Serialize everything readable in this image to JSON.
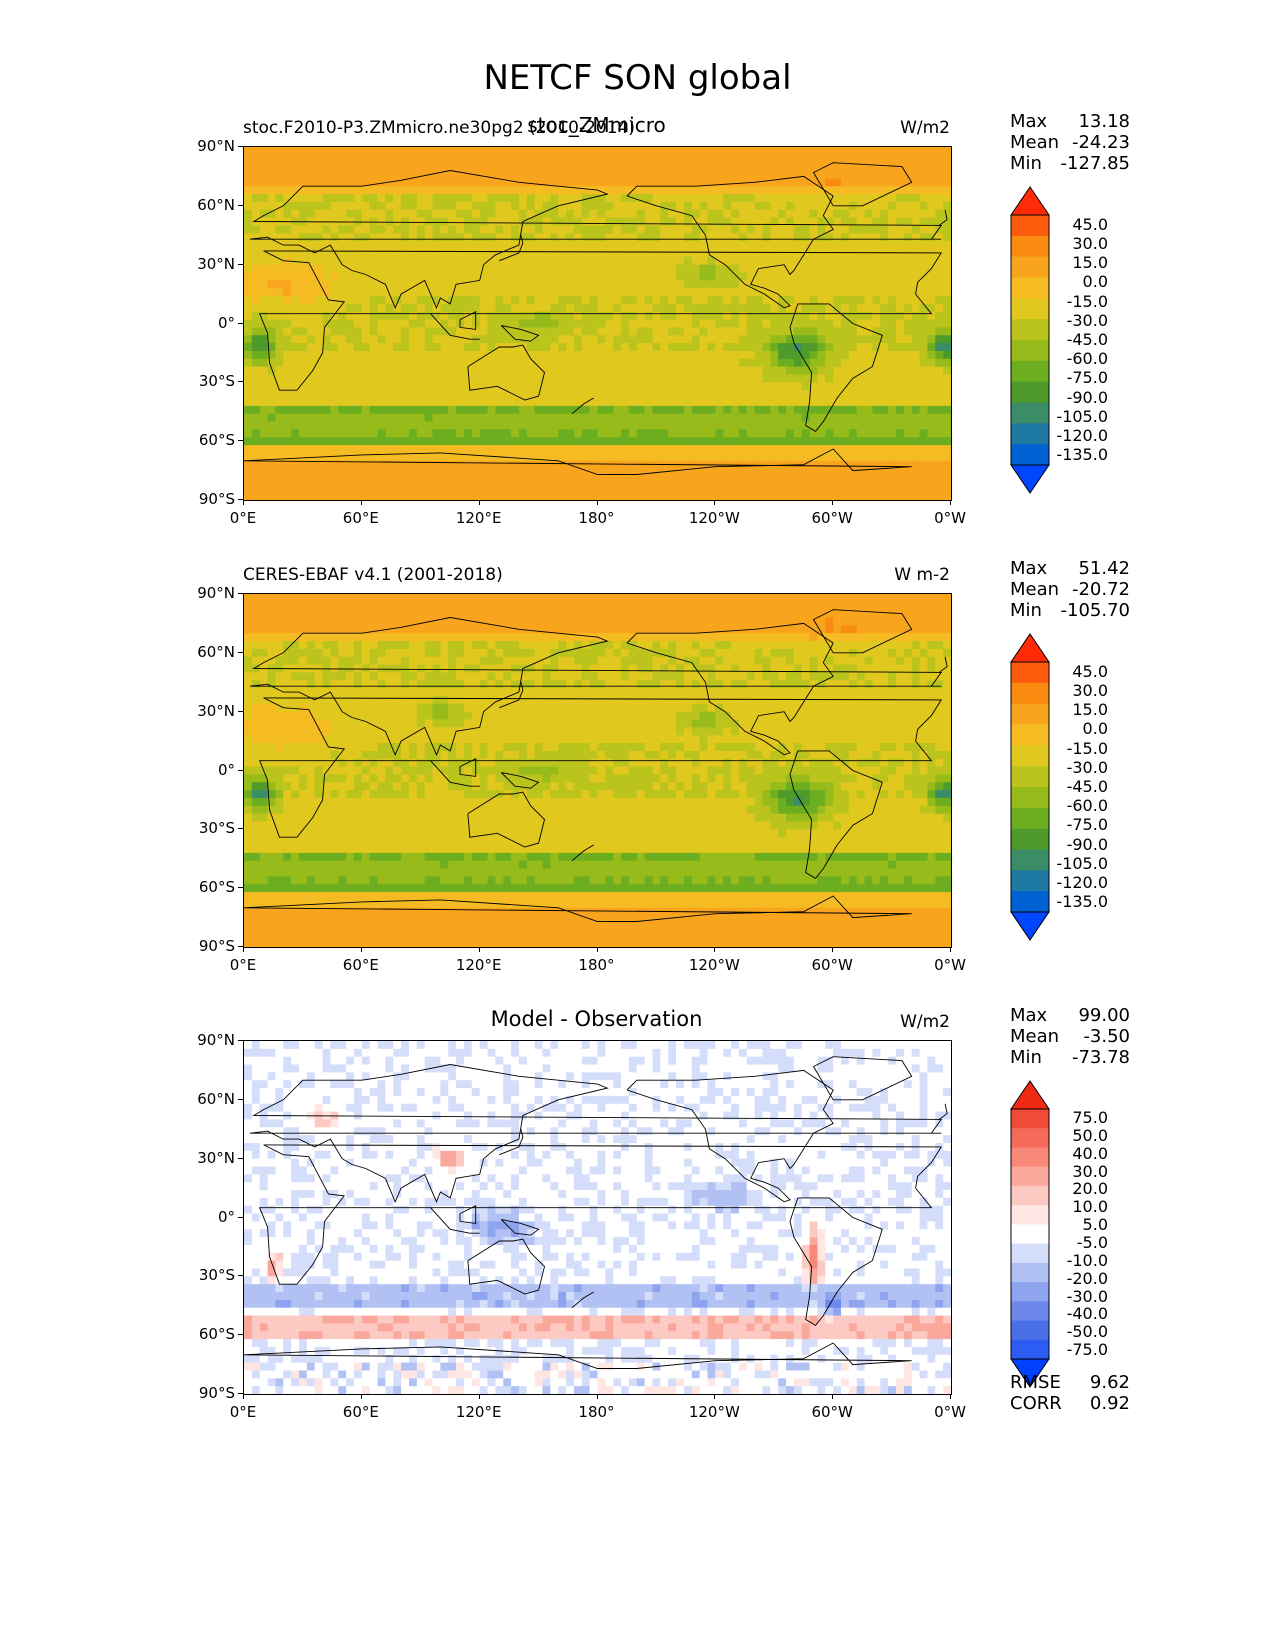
{
  "title": "NETCF SON global",
  "lat_ticks": [
    "90°N",
    "60°N",
    "30°N",
    "0°",
    "30°S",
    "60°S",
    "90°S"
  ],
  "lon_ticks": [
    "0°E",
    "60°E",
    "120°E",
    "180°",
    "120°W",
    "60°W",
    "0°W"
  ],
  "colors": {
    "abs_bands": [
      "#0046ff",
      "#0062d2",
      "#1f7aa3",
      "#3a8d66",
      "#4e9a2b",
      "#6cae1f",
      "#96bb1b",
      "#bbc41d",
      "#e0c81f",
      "#f4bb22",
      "#f8a41d",
      "#f98b10",
      "#fb5b0b",
      "#ff2b07"
    ],
    "diff_bands": [
      "#0040ff",
      "#2c5cf2",
      "#4a70e8",
      "#6b88ea",
      "#8ea4ee",
      "#b2c1f4",
      "#d4ddf9",
      "#ffffff",
      "#ffe6e2",
      "#fdcac3",
      "#fba89c",
      "#f88878",
      "#f56a58",
      "#f24a38",
      "#ef2a15"
    ]
  },
  "panels": [
    {
      "left_title": "stoc.F2010-P3.ZMmicro.ne30pg2 (2010-2014)",
      "center_title": "stoc_ZMmicro",
      "units": "W/m2",
      "max_label": "Max",
      "max": "13.18",
      "mean_label": "Mean",
      "mean": "-24.23",
      "min_label": "Min",
      "min": "-127.85",
      "colorbar_labels": [
        "45.0",
        "30.0",
        "15.0",
        "0.0",
        "-15.0",
        "-30.0",
        "-45.0",
        "-60.0",
        "-75.0",
        "-90.0",
        "-105.0",
        "-120.0",
        "-135.0"
      ]
    },
    {
      "left_title": "CERES-EBAF v4.1 (2001-2018)",
      "center_title": "",
      "units": "W m-2",
      "max_label": "Max",
      "max": "51.42",
      "mean_label": "Mean",
      "mean": "-20.72",
      "min_label": "Min",
      "min": "-105.70",
      "colorbar_labels": [
        "45.0",
        "30.0",
        "15.0",
        "0.0",
        "-15.0",
        "-30.0",
        "-45.0",
        "-60.0",
        "-75.0",
        "-90.0",
        "-105.0",
        "-120.0",
        "-135.0"
      ]
    },
    {
      "left_title": "",
      "center_title": "Model - Observation",
      "units": "W/m2",
      "max_label": "Max",
      "max": "99.00",
      "mean_label": "Mean",
      "mean": "-3.50",
      "min_label": "Min",
      "min": "-73.78",
      "colorbar_labels": [
        "75.0",
        "50.0",
        "40.0",
        "30.0",
        "20.0",
        "10.0",
        "5.0",
        "-5.0",
        "-10.0",
        "-20.0",
        "-30.0",
        "-40.0",
        "-50.0",
        "-75.0"
      ],
      "rmse_label": "RMSE",
      "rmse": "9.62",
      "corr_label": "CORR",
      "corr": "0.92"
    }
  ],
  "chart_data": [
    {
      "type": "heatmap",
      "title": "stoc_ZMmicro",
      "units": "W/m2",
      "xlim": [
        0,
        360
      ],
      "ylim": [
        -90,
        90
      ],
      "x_ticks": [
        "0°E",
        "60°E",
        "120°E",
        "180°",
        "120°W",
        "60°W",
        "0°W"
      ],
      "y_ticks": [
        "90°N",
        "60°N",
        "30°N",
        "0°",
        "30°S",
        "60°S",
        "90°S"
      ],
      "stats": {
        "max": 13.18,
        "mean": -24.23,
        "min": -127.85
      },
      "colorbar_levels": [
        45,
        30,
        15,
        0,
        -15,
        -30,
        -45,
        -60,
        -75,
        -90,
        -105,
        -120,
        -135
      ]
    },
    {
      "type": "heatmap",
      "title": "CERES-EBAF v4.1 (2001-2018)",
      "units": "W m-2",
      "xlim": [
        0,
        360
      ],
      "ylim": [
        -90,
        90
      ],
      "stats": {
        "max": 51.42,
        "mean": -20.72,
        "min": -105.7
      },
      "colorbar_levels": [
        45,
        30,
        15,
        0,
        -15,
        -30,
        -45,
        -60,
        -75,
        -90,
        -105,
        -120,
        -135
      ]
    },
    {
      "type": "heatmap",
      "title": "Model - Observation",
      "units": "W/m2",
      "xlim": [
        0,
        360
      ],
      "ylim": [
        -90,
        90
      ],
      "stats": {
        "max": 99.0,
        "mean": -3.5,
        "min": -73.78,
        "rmse": 9.62,
        "corr": 0.92
      },
      "colorbar_levels": [
        75,
        50,
        40,
        30,
        20,
        10,
        5,
        -5,
        -10,
        -20,
        -30,
        -40,
        -50,
        -75
      ]
    }
  ]
}
